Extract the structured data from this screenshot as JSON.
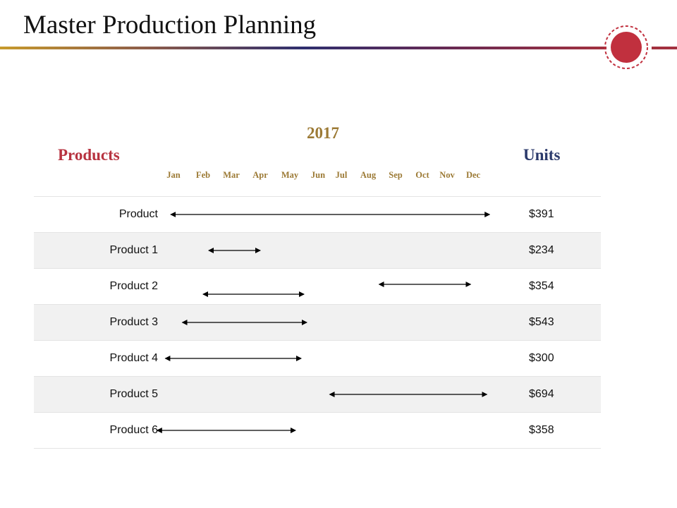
{
  "title": "Master Production Planning",
  "colors": {
    "products_heading": "#b73340",
    "units_heading": "#2b3a6b",
    "year_and_months": "#9c7a35",
    "badge": "#c1303e",
    "arrow": "#000000"
  },
  "icons": {
    "badge": "red-circle-badge-icon"
  },
  "schedule": {
    "year": "2017",
    "products_heading": "Products",
    "units_heading": "Units",
    "months": [
      "Jan",
      "Feb",
      "Mar",
      "Apr",
      "May",
      "Jun",
      "Jul",
      "Aug",
      "Sep",
      "Oct",
      "Nov",
      "Dec"
    ],
    "rows": [
      {
        "name": "Product",
        "units": "$391",
        "bars": [
          {
            "start_month": -0.1,
            "end_month": 11.6
          }
        ]
      },
      {
        "name": "Product 1",
        "units": "$234",
        "bars": [
          {
            "start_month": 1.2,
            "end_month": 3.0
          }
        ]
      },
      {
        "name": "Product 2",
        "units": "$354",
        "bars": [
          {
            "start_month": 1.0,
            "end_month": 4.5
          },
          {
            "start_month": 7.4,
            "end_month": 10.9
          }
        ]
      },
      {
        "name": "Product 3",
        "units": "$543",
        "bars": [
          {
            "start_month": 0.3,
            "end_month": 4.6
          }
        ]
      },
      {
        "name": "Product 4",
        "units": "$300",
        "bars": [
          {
            "start_month": -0.3,
            "end_month": 4.4
          }
        ]
      },
      {
        "name": "Product 5",
        "units": "$694",
        "bars": [
          {
            "start_month": 5.5,
            "end_month": 11.5
          }
        ]
      },
      {
        "name": "Product 6",
        "units": "$358",
        "bars": [
          {
            "start_month": -0.6,
            "end_month": 4.2
          }
        ]
      }
    ]
  }
}
